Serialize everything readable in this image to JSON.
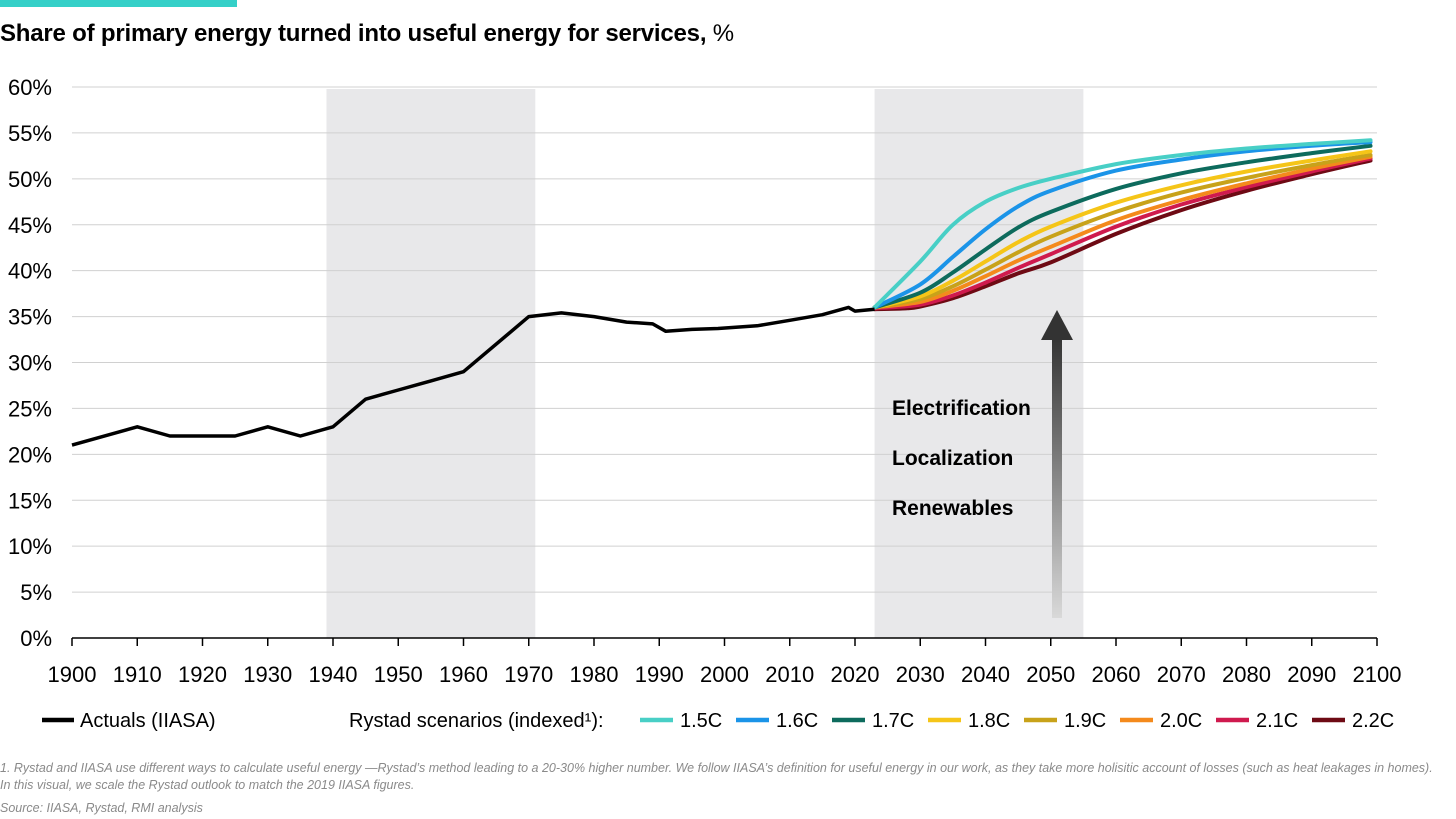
{
  "header": {
    "accent_color": "#35d0c8",
    "title": "Share of primary energy turned into useful energy for services,",
    "title_unit": "%"
  },
  "chart_data": {
    "type": "line",
    "title": "Share of primary energy turned into useful energy for services, %",
    "xlim": [
      1900,
      2100
    ],
    "ylim": [
      0,
      60
    ],
    "x_ticks": [
      "1900",
      "1910",
      "1920",
      "1930",
      "1940",
      "1950",
      "1960",
      "1970",
      "1980",
      "1990",
      "2000",
      "2010",
      "2020",
      "2030",
      "2040",
      "2050",
      "2060",
      "2070",
      "2080",
      "2090",
      "2100"
    ],
    "y_ticks": [
      "0%",
      "5%",
      "10%",
      "15%",
      "20%",
      "25%",
      "30%",
      "35%",
      "40%",
      "45%",
      "50%",
      "55%",
      "60%"
    ],
    "grid": "horizontal",
    "shaded_periods": [
      [
        1939,
        1971
      ],
      [
        2023,
        2055
      ]
    ],
    "annotations": [
      "Electrification",
      "Localization",
      "Renewables"
    ],
    "actuals": {
      "name": "Actuals (IIASA)",
      "color": "#000000",
      "points": [
        [
          1900,
          21
        ],
        [
          1910,
          23
        ],
        [
          1915,
          22
        ],
        [
          1925,
          22
        ],
        [
          1930,
          23
        ],
        [
          1935,
          22
        ],
        [
          1940,
          23
        ],
        [
          1945,
          26
        ],
        [
          1950,
          27
        ],
        [
          1955,
          28
        ],
        [
          1960,
          29
        ],
        [
          1970,
          35
        ],
        [
          1975,
          35.4
        ],
        [
          1980,
          35
        ],
        [
          1985,
          34.4
        ],
        [
          1989,
          34.2
        ],
        [
          1991,
          33.4
        ],
        [
          1995,
          33.6
        ],
        [
          1999,
          33.7
        ],
        [
          2005,
          34
        ],
        [
          2010,
          34.6
        ],
        [
          2015,
          35.2
        ],
        [
          2019,
          36
        ],
        [
          2020,
          35.6
        ],
        [
          2023,
          35.8
        ]
      ]
    },
    "legend_title": "Rystad scenarios (indexed¹):",
    "series": [
      {
        "name": "1.5C",
        "color": "#48cfc6",
        "points": [
          [
            2023,
            36
          ],
          [
            2030,
            41
          ],
          [
            2035,
            45
          ],
          [
            2040,
            47.5
          ],
          [
            2045,
            49
          ],
          [
            2050,
            50
          ],
          [
            2060,
            51.6
          ],
          [
            2070,
            52.6
          ],
          [
            2080,
            53.3
          ],
          [
            2090,
            53.8
          ],
          [
            2099,
            54.2
          ]
        ]
      },
      {
        "name": "1.6C",
        "color": "#1b94e8",
        "points": [
          [
            2023,
            36
          ],
          [
            2030,
            38.5
          ],
          [
            2035,
            41.5
          ],
          [
            2040,
            44.5
          ],
          [
            2045,
            47
          ],
          [
            2050,
            48.7
          ],
          [
            2060,
            50.9
          ],
          [
            2070,
            52.1
          ],
          [
            2080,
            53
          ],
          [
            2090,
            53.6
          ],
          [
            2099,
            54
          ]
        ]
      },
      {
        "name": "1.7C",
        "color": "#0d6b5d",
        "points": [
          [
            2023,
            36
          ],
          [
            2030,
            37.6
          ],
          [
            2035,
            39.8
          ],
          [
            2040,
            42.3
          ],
          [
            2045,
            44.7
          ],
          [
            2050,
            46.4
          ],
          [
            2060,
            48.9
          ],
          [
            2070,
            50.6
          ],
          [
            2080,
            51.8
          ],
          [
            2090,
            52.8
          ],
          [
            2099,
            53.6
          ]
        ]
      },
      {
        "name": "1.8C",
        "color": "#f5c518",
        "points": [
          [
            2023,
            36
          ],
          [
            2030,
            37.2
          ],
          [
            2035,
            38.9
          ],
          [
            2040,
            41
          ],
          [
            2045,
            43.1
          ],
          [
            2050,
            44.8
          ],
          [
            2060,
            47.4
          ],
          [
            2070,
            49.3
          ],
          [
            2080,
            50.8
          ],
          [
            2090,
            52
          ],
          [
            2099,
            53
          ]
        ]
      },
      {
        "name": "1.9C",
        "color": "#c8a21a",
        "points": [
          [
            2023,
            36
          ],
          [
            2030,
            36.9
          ],
          [
            2035,
            38.3
          ],
          [
            2040,
            40.1
          ],
          [
            2045,
            42
          ],
          [
            2050,
            43.7
          ],
          [
            2060,
            46.4
          ],
          [
            2070,
            48.5
          ],
          [
            2080,
            50.1
          ],
          [
            2090,
            51.5
          ],
          [
            2099,
            52.6
          ]
        ]
      },
      {
        "name": "2.0C",
        "color": "#f48a1c",
        "points": [
          [
            2023,
            36
          ],
          [
            2030,
            36.6
          ],
          [
            2035,
            37.8
          ],
          [
            2040,
            39.4
          ],
          [
            2045,
            41.1
          ],
          [
            2050,
            42.6
          ],
          [
            2060,
            45.5
          ],
          [
            2070,
            47.7
          ],
          [
            2080,
            49.5
          ],
          [
            2090,
            51.1
          ],
          [
            2099,
            52.4
          ]
        ]
      },
      {
        "name": "2.1C",
        "color": "#cf1a4e",
        "points": [
          [
            2023,
            35.9
          ],
          [
            2030,
            36.3
          ],
          [
            2035,
            37.3
          ],
          [
            2040,
            38.7
          ],
          [
            2045,
            40.3
          ],
          [
            2050,
            41.8
          ],
          [
            2060,
            44.8
          ],
          [
            2070,
            47.2
          ],
          [
            2080,
            49.1
          ],
          [
            2090,
            50.8
          ],
          [
            2099,
            52.2
          ]
        ]
      },
      {
        "name": "2.2C",
        "color": "#6e0a14",
        "points": [
          [
            2023,
            35.8
          ],
          [
            2028,
            35.9
          ],
          [
            2030,
            36.1
          ],
          [
            2035,
            37
          ],
          [
            2040,
            38.3
          ],
          [
            2045,
            39.7
          ],
          [
            2050,
            40.9
          ],
          [
            2060,
            44
          ],
          [
            2070,
            46.6
          ],
          [
            2080,
            48.7
          ],
          [
            2090,
            50.5
          ],
          [
            2099,
            52
          ]
        ]
      }
    ]
  },
  "footnote": "1. Rystad and IIASA use different ways to calculate useful energy —Rystad’s method leading to a 20-30% higher number. We follow IIASA’s definition for useful energy in our work, as they take more holisitic account of losses (such as heat leakages in homes). In this visual, we scale the Rystad outlook to match the 2019 IIASA figures.",
  "source": "Source: IIASA, Rystad, RMI analysis"
}
